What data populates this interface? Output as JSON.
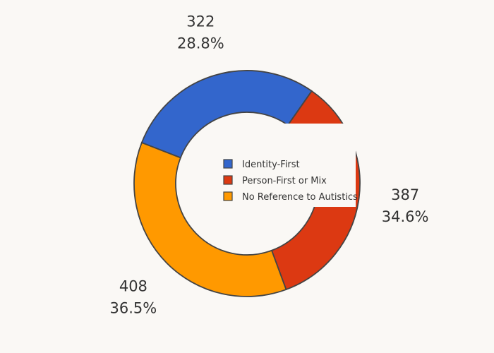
{
  "chart_data": {
    "type": "pie",
    "hole": true,
    "categories": [
      "Identity-First",
      "Person-First or Mix",
      "No Reference to Autistics"
    ],
    "values": [
      322,
      387,
      408
    ],
    "percent_labels": [
      "28.8%",
      "34.6%",
      "36.5%"
    ],
    "colors": [
      "#3366cc",
      "#dc3912",
      "#ff9900"
    ],
    "slice_outline_color": "#444444",
    "background": "#faf8f5",
    "legend_position": "center"
  }
}
